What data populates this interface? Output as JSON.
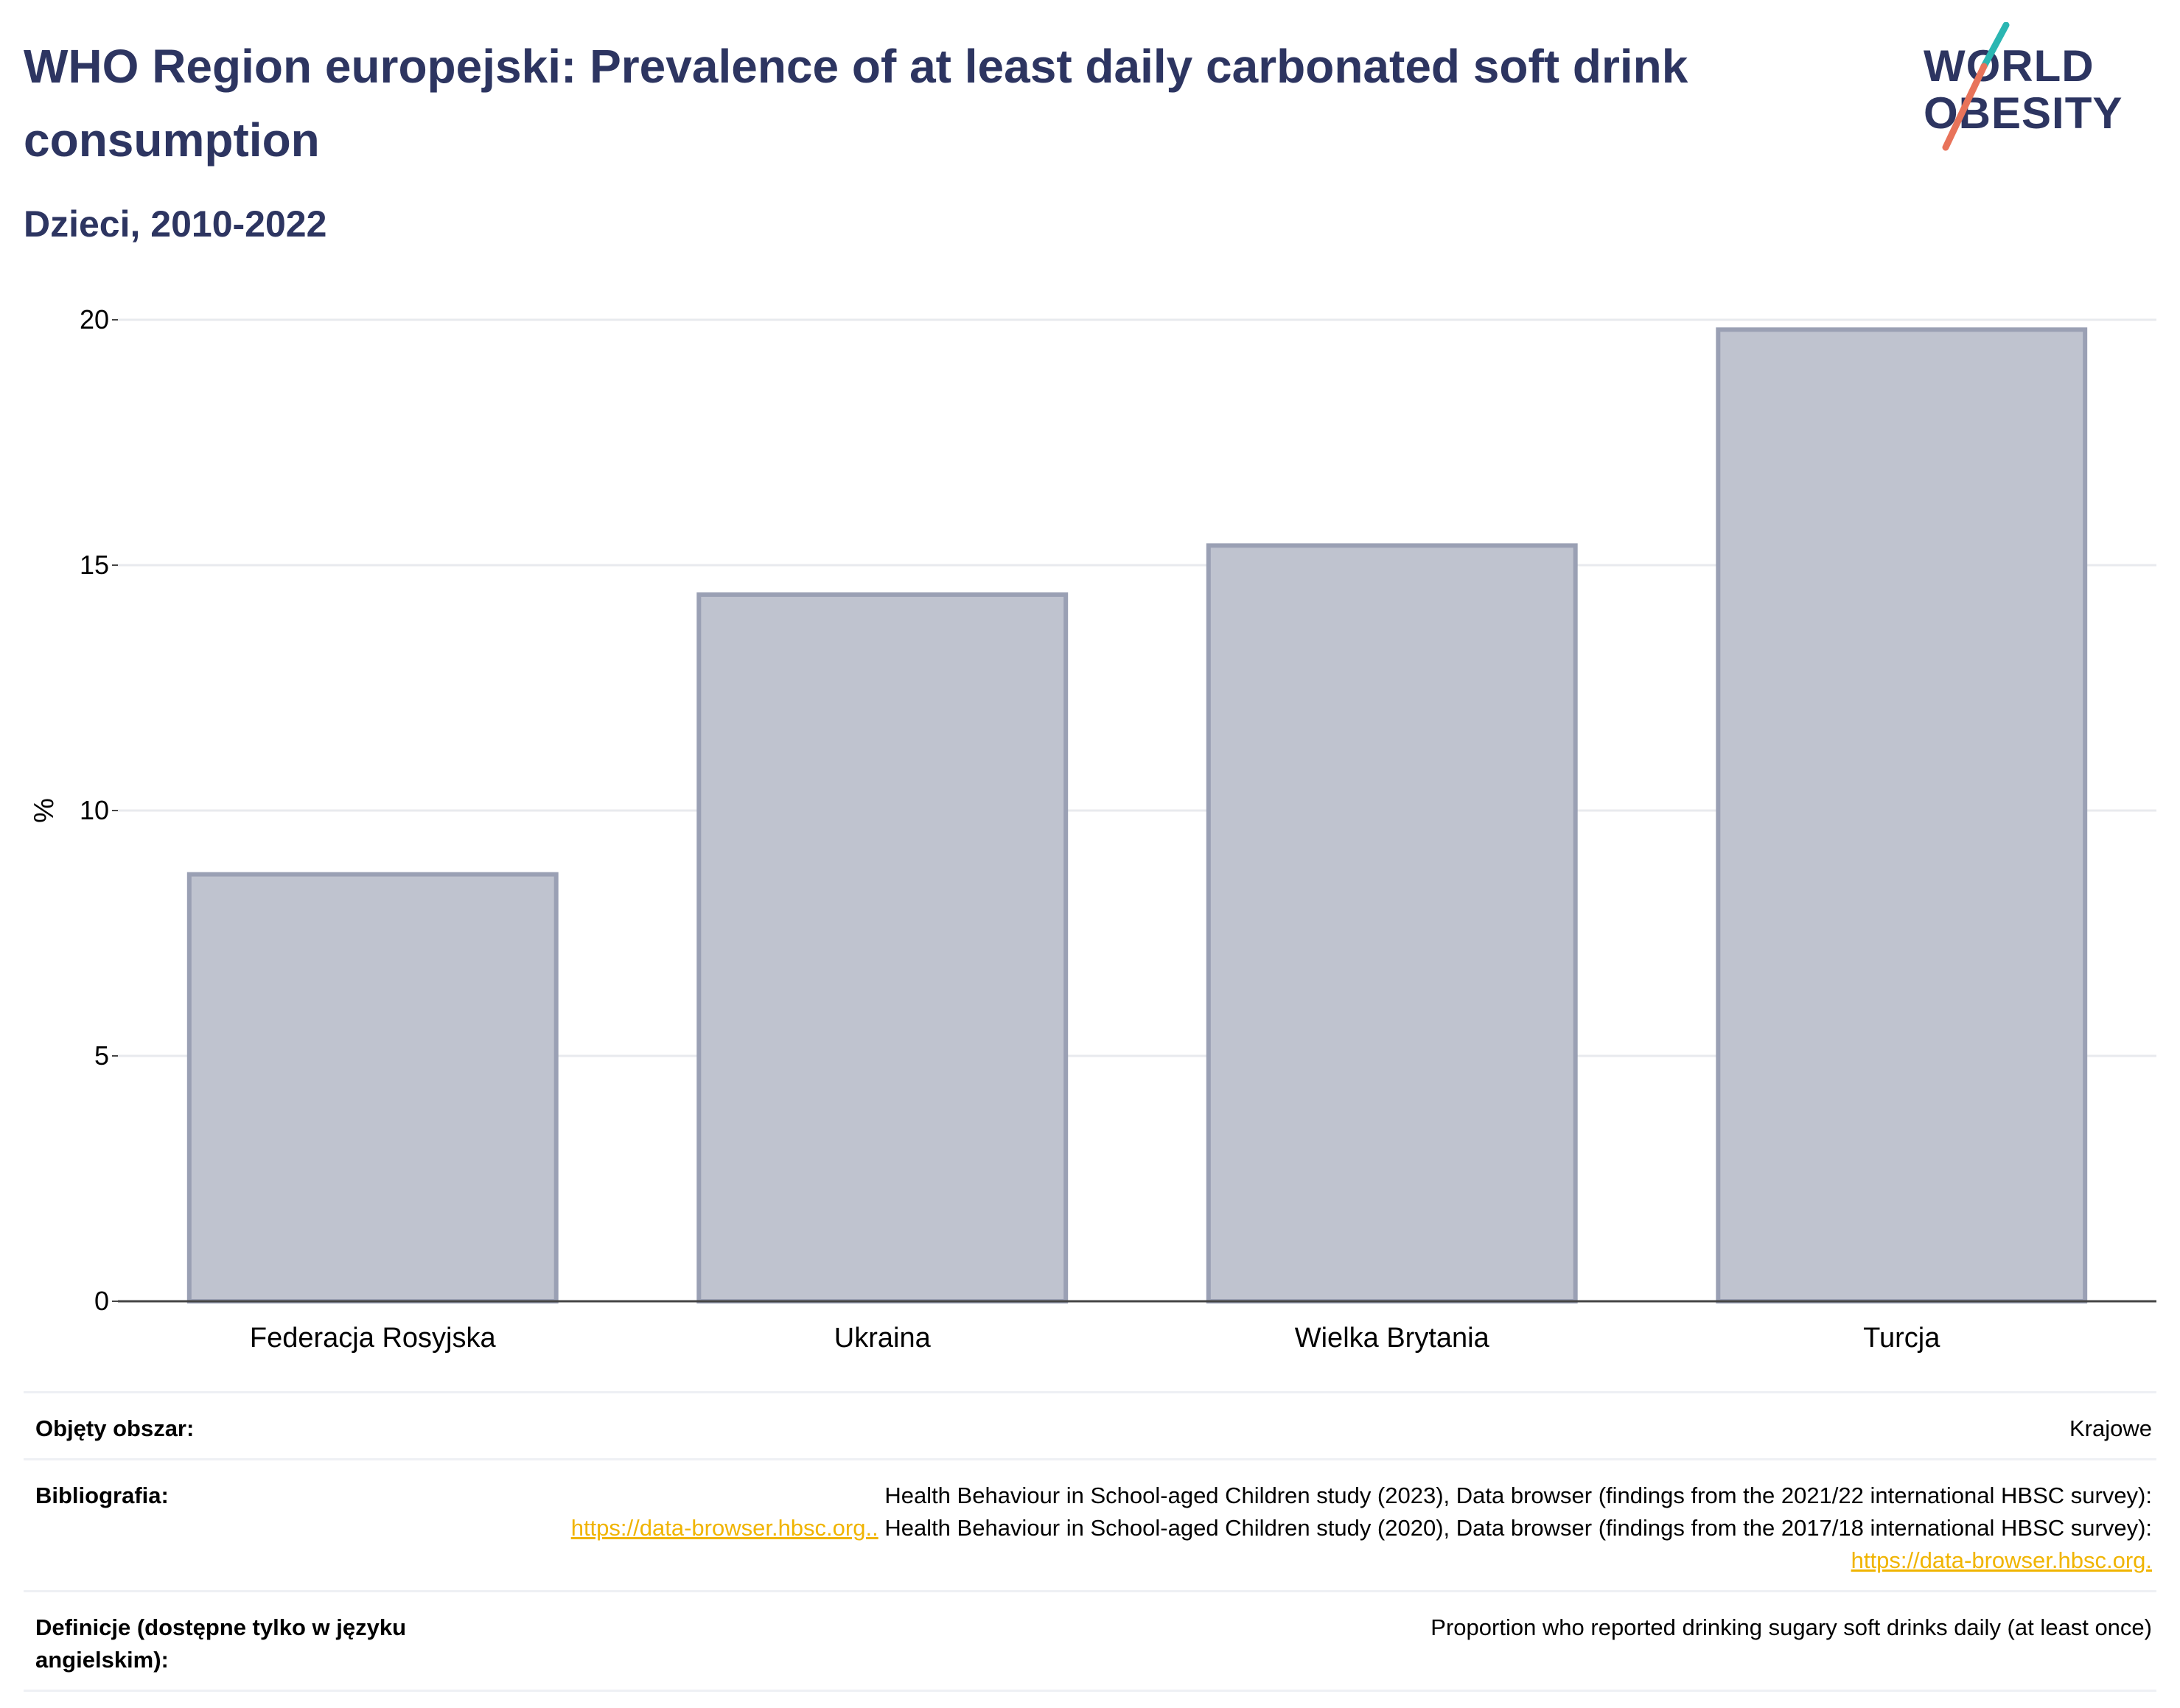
{
  "header": {
    "title": "WHO Region europejski: Prevalence of at least daily carbonated soft drink consumption",
    "subtitle": "Dzieci, 2010-2022"
  },
  "logo": {
    "line1": "WORLD",
    "line2": "OBESITY",
    "accent_teal": "#2bb6b2",
    "accent_coral": "#e8735a"
  },
  "colors": {
    "text_primary": "#2d3561",
    "bar_fill": "#bfc3cf",
    "bar_stroke": "#9aa0b4",
    "link": "#f0b400"
  },
  "chart_data": {
    "type": "bar",
    "categories": [
      "Federacja Rosyjska",
      "Ukraina",
      "Wielka Brytania",
      "Turcja"
    ],
    "values": [
      8.7,
      14.4,
      15.4,
      19.8
    ],
    "title": "WHO Region europejski: Prevalence of at least daily carbonated soft drink consumption",
    "subtitle": "Dzieci, 2010-2022",
    "xlabel": "",
    "ylabel": "%",
    "ylim": [
      0,
      20
    ],
    "yticks": [
      0,
      5,
      10,
      15,
      20
    ],
    "grid": true,
    "legend": "none"
  },
  "meta": {
    "rows": [
      {
        "label": "Objęty obszar:",
        "value": "Krajowe"
      },
      {
        "label": "Bibliografia:",
        "text1": "Health Behaviour in School-aged Children study (2023), Data browser (findings from the 2021/22 international HBSC survey):",
        "link1": "https://data-browser.hbsc.org..",
        "text2": " Health Behaviour in School-aged Children study (2020), Data browser (findings from the 2017/18 international HBSC survey): ",
        "link2": "https://data-browser.hbsc.org."
      },
      {
        "label": "Definicje (dostępne tylko w języku angielskim):",
        "value": "Proportion who reported drinking sugary soft drinks daily (at least once)"
      }
    ]
  }
}
